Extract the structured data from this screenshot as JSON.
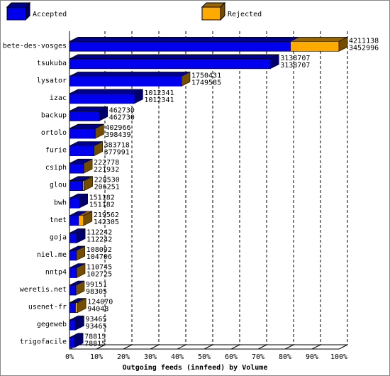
{
  "chart_data": {
    "type": "bar3d",
    "xlabel": "Outgoing feeds (innfeed) by Volume",
    "categories": [
      "bete-des-vosges",
      "tsukuba",
      "lysator",
      "izac",
      "backup",
      "ortolo",
      "furie",
      "csiph",
      "glou",
      "bwh",
      "tnet",
      "goja",
      "niel.me",
      "nntp4",
      "weretis.net",
      "usenet-fr",
      "gegeweb",
      "trigofacile"
    ],
    "series": [
      {
        "name": "Accepted",
        "color": "#0000ee",
        "values": [
          3452996,
          3138707,
          1749585,
          1012341,
          462730,
          398439,
          377991,
          221932,
          206251,
          151182,
          142305,
          112242,
          104706,
          102725,
          98305,
          94048,
          93465,
          78815
        ]
      },
      {
        "name": "Rejected",
        "color": "#ffaa00",
        "values": [
          758142,
          0,
          846,
          0,
          0,
          4527,
          5727,
          846,
          22279,
          0,
          77257,
          0,
          3386,
          8020,
          846,
          30022,
          0,
          0
        ]
      }
    ],
    "totals": [
      4211138,
      3138707,
      1750431,
      1012341,
      462730,
      402966,
      383718,
      222778,
      228530,
      151182,
      219562,
      112242,
      108092,
      110745,
      99151,
      124070,
      93465,
      78815
    ],
    "xlim": [
      0,
      4211138
    ],
    "xticks": [
      {
        "value": 0,
        "label": "0%"
      },
      {
        "value": 421113.8,
        "label": "10%"
      },
      {
        "value": 842227.6,
        "label": "20%"
      },
      {
        "value": 1263341.4,
        "label": "30%"
      },
      {
        "value": 1684455.2,
        "label": "40%"
      },
      {
        "value": 2105569,
        "label": "50%"
      },
      {
        "value": 2526682.8,
        "label": "60%"
      },
      {
        "value": 2947796.6,
        "label": "70%"
      },
      {
        "value": 3368910.4,
        "label": "80%"
      },
      {
        "value": 3790024.2,
        "label": "90%"
      },
      {
        "value": 4211138,
        "label": "100%"
      }
    ],
    "grid": true
  }
}
